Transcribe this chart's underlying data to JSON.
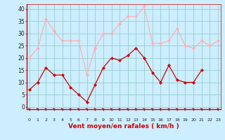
{
  "x": [
    0,
    1,
    2,
    3,
    4,
    5,
    6,
    7,
    8,
    9,
    10,
    11,
    12,
    13,
    14,
    15,
    16,
    17,
    18,
    19,
    20,
    21,
    22,
    23
  ],
  "wind_avg": [
    7,
    10,
    16,
    13,
    13,
    8,
    5,
    2,
    9,
    16,
    20,
    19,
    21,
    24,
    20,
    14,
    10,
    17,
    11,
    10,
    10,
    15,
    null,
    null
  ],
  "wind_gust": [
    20,
    24,
    36,
    31,
    27,
    27,
    27,
    13,
    24,
    30,
    30,
    34,
    37,
    37,
    41,
    26,
    26,
    27,
    32,
    25,
    24,
    27,
    25,
    27
  ],
  "avg_color": "#cc0000",
  "gust_color": "#ffb0b0",
  "bg_color": "#cceeff",
  "grid_color": "#99cccc",
  "xlabel": "Vent moyen/en rafales ( km/h )",
  "xlabel_color": "#cc0000",
  "ylabel_ticks": [
    0,
    5,
    10,
    15,
    20,
    25,
    30,
    35,
    40
  ],
  "ylim": [
    -1,
    42
  ],
  "xlim": [
    -0.3,
    23.3
  ]
}
